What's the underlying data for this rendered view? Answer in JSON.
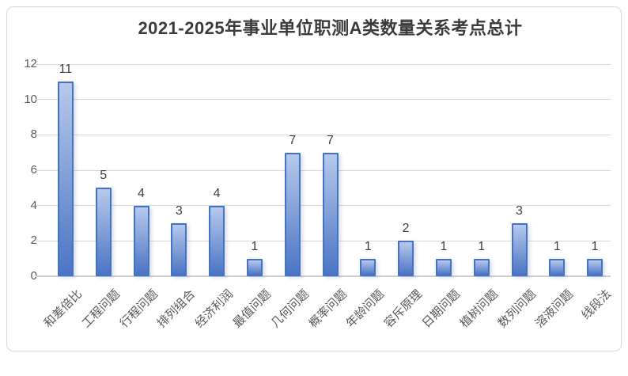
{
  "chart_data": {
    "type": "bar",
    "title": "2021-2025年事业单位职测A类数量关系考点总计",
    "categories": [
      "和差倍比",
      "工程问题",
      "行程问题",
      "排列组合",
      "经济利润",
      "最值问题",
      "几何问题",
      "概率问题",
      "年龄问题",
      "容斥原理",
      "日期问题",
      "植树问题",
      "数列问题",
      "溶液问题",
      "线段法"
    ],
    "values": [
      11,
      5,
      4,
      3,
      4,
      1,
      7,
      7,
      1,
      2,
      1,
      1,
      3,
      1,
      1
    ],
    "xlabel": "",
    "ylabel": "",
    "ylim": [
      0,
      12
    ],
    "yticks": [
      0,
      2,
      4,
      6,
      8,
      10,
      12
    ],
    "grid": true,
    "legend": "none",
    "colors": {
      "bar_border": "#4472c4",
      "bar_gradient_top": "#b7c9eb",
      "bar_gradient_bottom": "#4a74c4",
      "bar_shadow": "rgba(68,114,196,0.22)",
      "gridline": "#d9d9d9",
      "axis_line": "#cfcfcf",
      "title_text": "#3b3b3b",
      "tick_text": "#595959",
      "value_label_text": "#404040",
      "frame_border": "#d9d9d9",
      "background": "#ffffff"
    }
  }
}
